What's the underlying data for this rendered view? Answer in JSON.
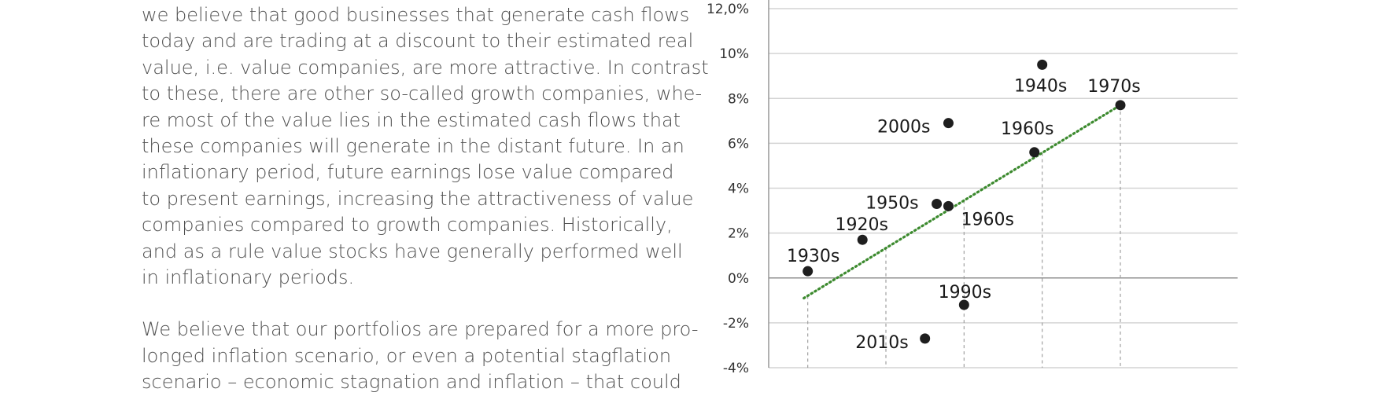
{
  "text": {
    "paragraph_1_lines": [
      "we believe that good businesses that generate cash flows",
      "today and are trading at a discount to their estimated real",
      "value, i.e. value companies, are more attractive. In contrast",
      "to these, there are other so-called growth companies, whe-",
      "re most of the value lies in the estimated cash flows that",
      "these companies will generate in the distant future. In an",
      "inflationary period, future earnings lose value compared",
      "to present earnings, increasing the attractiveness of value",
      "companies compared to growth companies. Historically,",
      "and as a rule value stocks have generally performed well",
      "in inflationary periods."
    ],
    "paragraph_2_lines": [
      "We believe that our portfolios are prepared for a more pro-",
      "longed inflation scenario, or even a potential stagflation",
      "scenario – economic stagnation and inflation – that could"
    ]
  },
  "chart_data": {
    "type": "scatter",
    "title": "",
    "xlabel": "",
    "ylabel": "",
    "y_tick_labels": [
      "-4%",
      "-2%",
      "0%",
      "2%",
      "4%",
      "6%",
      "8%",
      "10%",
      "12,0%"
    ],
    "y_tick_values": [
      -4,
      -2,
      0,
      2,
      4,
      6,
      8,
      10,
      12
    ],
    "ylim": [
      -4,
      12
    ],
    "xlim": [
      0,
      6
    ],
    "grid": "horizontal",
    "points": [
      {
        "label": "1930s",
        "x": 0.5,
        "y": 0.3
      },
      {
        "label": "1920s",
        "x": 1.2,
        "y": 1.7
      },
      {
        "label": "1950s",
        "x": 2.15,
        "y": 3.3
      },
      {
        "label": "1960s",
        "x": 2.3,
        "y": 3.2
      },
      {
        "label": "2000s",
        "x": 2.3,
        "y": 6.9
      },
      {
        "label": "1990s",
        "x": 2.5,
        "y": -1.2
      },
      {
        "label": "2010s",
        "x": 2.0,
        "y": -2.7
      },
      {
        "label": "1960s",
        "x": 3.4,
        "y": 5.6
      },
      {
        "label": "1940s",
        "x": 3.5,
        "y": 9.5
      },
      {
        "label": "1970s",
        "x": 4.5,
        "y": 7.7
      }
    ],
    "trendline": {
      "x": [
        0.45,
        4.5
      ],
      "y": [
        -0.9,
        7.7
      ]
    },
    "colors": {
      "points": "#1e1e1e",
      "trendline": "#3c8a2e",
      "grid": "#d4d4d4",
      "zero_line": "#909090",
      "axis": "#909090",
      "drop_lines": "#a0a0a0"
    }
  }
}
